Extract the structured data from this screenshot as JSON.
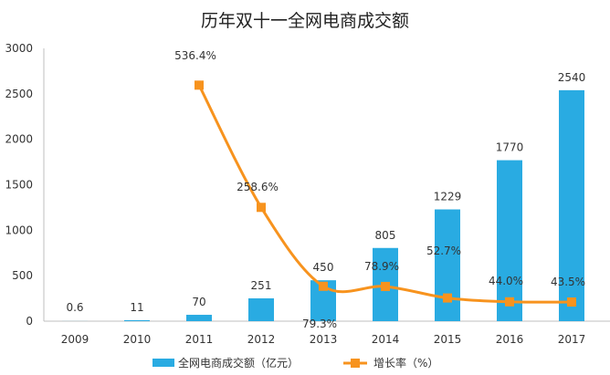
{
  "chart_data": {
    "type": "bar+line",
    "title": "历年双十一全网电商成交额",
    "categories": [
      "2009",
      "2010",
      "2011",
      "2012",
      "2013",
      "2014",
      "2015",
      "2016",
      "2017"
    ],
    "series": [
      {
        "name": "全网电商成交额（亿元）",
        "type": "bar",
        "axis": "left",
        "color": "#29abe2",
        "values": [
          0.6,
          11,
          70,
          251,
          450,
          805,
          1229,
          1770,
          2540
        ],
        "labels": [
          "0.6",
          "11",
          "70",
          "251",
          "450",
          "805",
          "1229",
          "1770",
          "2540"
        ]
      },
      {
        "name": "增长率（%）",
        "type": "line",
        "axis": "secondary-hidden",
        "color": "#f7931e",
        "values": [
          null,
          null,
          536.4,
          258.6,
          79.3,
          78.9,
          52.7,
          44.0,
          43.5
        ],
        "labels": [
          "",
          "",
          "536.4%",
          "258.6%",
          "79.3%",
          "78.9%",
          "52.7%",
          "44.0%",
          "43.5%"
        ]
      }
    ],
    "y_left": {
      "ylim": [
        0,
        3000
      ],
      "ticks": [
        "0",
        "500",
        "1000",
        "1500",
        "2000",
        "2500",
        "3000"
      ]
    },
    "y_right": {
      "ylim": [
        0,
        620
      ],
      "visible": false
    },
    "grid": false,
    "legend": "bottom"
  }
}
